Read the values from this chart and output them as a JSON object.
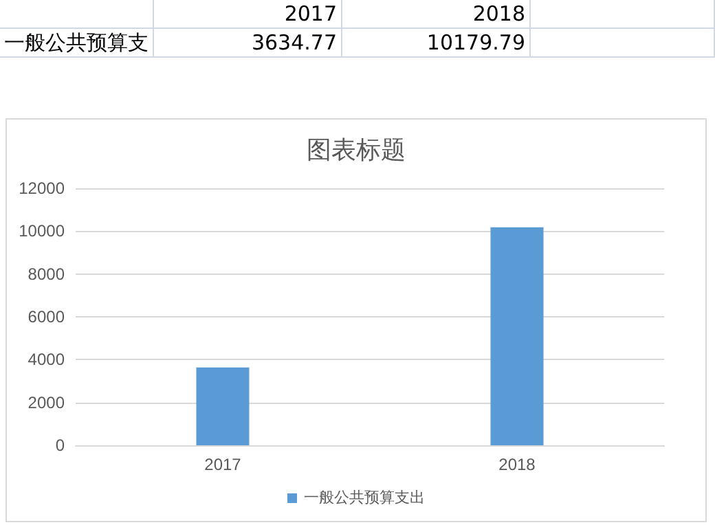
{
  "chart_data": {
    "type": "bar",
    "title": "图表标题",
    "categories": [
      "2017",
      "2018"
    ],
    "series": [
      {
        "name": "一般公共预算支出",
        "color": "#5b9bd5",
        "values": [
          3634.77,
          10179.79
        ],
        "value_labels": [
          "3634.77",
          "10179.79"
        ]
      }
    ],
    "annotations": [
      "一般公共预算支"
    ],
    "ylim": [
      0,
      12000
    ],
    "yticks": [
      0,
      2000,
      4000,
      6000,
      8000,
      10000,
      12000
    ],
    "grid": "y",
    "legend": "bottom"
  }
}
